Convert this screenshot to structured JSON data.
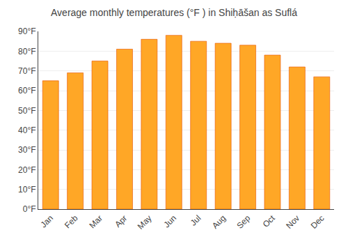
{
  "chart_data": {
    "type": "bar",
    "title": "Average monthly temperatures (°F ) in Shiḥāšan as Suflá",
    "categories": [
      "Jan",
      "Feb",
      "Mar",
      "Apr",
      "May",
      "Jun",
      "Jul",
      "Aug",
      "Sep",
      "Oct",
      "Nov",
      "Dec"
    ],
    "values": [
      65,
      69,
      75,
      81,
      86,
      88,
      85,
      84,
      83,
      78,
      72,
      67
    ],
    "color": "#FFA726",
    "ylim": [
      0,
      90
    ],
    "yticks": [
      {
        "value": 0,
        "label": "0°F"
      },
      {
        "value": 10,
        "label": "10°F"
      },
      {
        "value": 20,
        "label": "20°F"
      },
      {
        "value": 30,
        "label": "30°F"
      },
      {
        "value": 40,
        "label": "40°F"
      },
      {
        "value": 50,
        "label": "50°F"
      },
      {
        "value": 60,
        "label": "60°F"
      },
      {
        "value": 70,
        "label": "70°F"
      },
      {
        "value": 80,
        "label": "80°F"
      },
      {
        "value": 90,
        "label": "90°F"
      }
    ],
    "grid": true
  }
}
